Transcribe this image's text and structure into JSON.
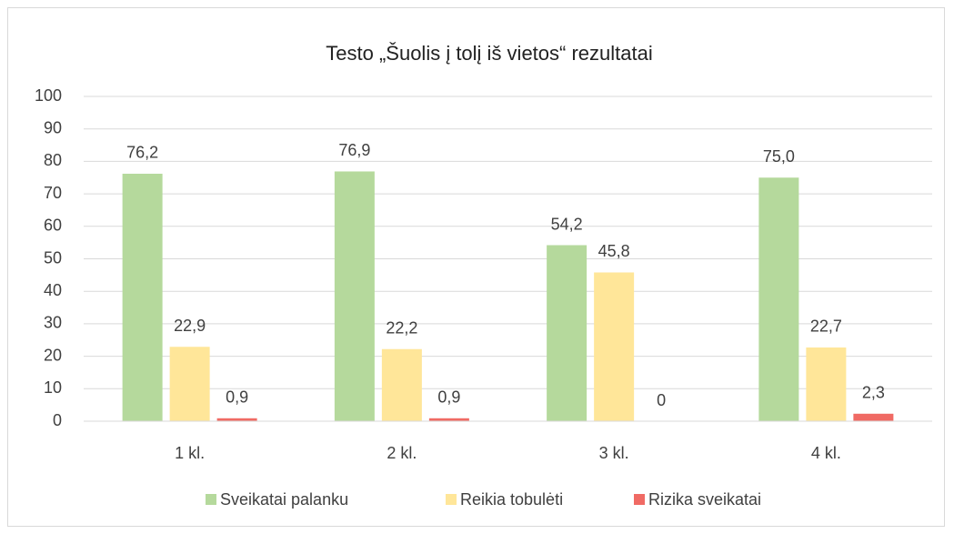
{
  "chart_data": {
    "type": "bar",
    "title": "Testo „Šuolis į tolį iš vietos“ rezultatai",
    "categories": [
      "1 kl.",
      "2 kl.",
      "3 kl.",
      "4 kl."
    ],
    "series": [
      {
        "name": "Sveikatai palanku",
        "color": "#b5d99c",
        "values": [
          76.2,
          76.9,
          54.2,
          75.0
        ],
        "value_labels": [
          "76,2",
          "76,9",
          "54,2",
          "75,0"
        ]
      },
      {
        "name": "Reikia tobulėti",
        "color": "#ffe699",
        "values": [
          22.9,
          22.2,
          45.8,
          22.7
        ],
        "value_labels": [
          "22,9",
          "22,2",
          "45,8",
          "22,7"
        ]
      },
      {
        "name": "Rizika sveikatai",
        "color": "#f06a64",
        "values": [
          0.9,
          0.9,
          0,
          2.3
        ],
        "value_labels": [
          "0,9",
          "0,9",
          "0",
          "2,3"
        ]
      }
    ],
    "ylim": [
      0,
      100
    ],
    "yticks": [
      0,
      10,
      20,
      30,
      40,
      50,
      60,
      70,
      80,
      90,
      100
    ],
    "grid": true,
    "legend": "bottom"
  }
}
